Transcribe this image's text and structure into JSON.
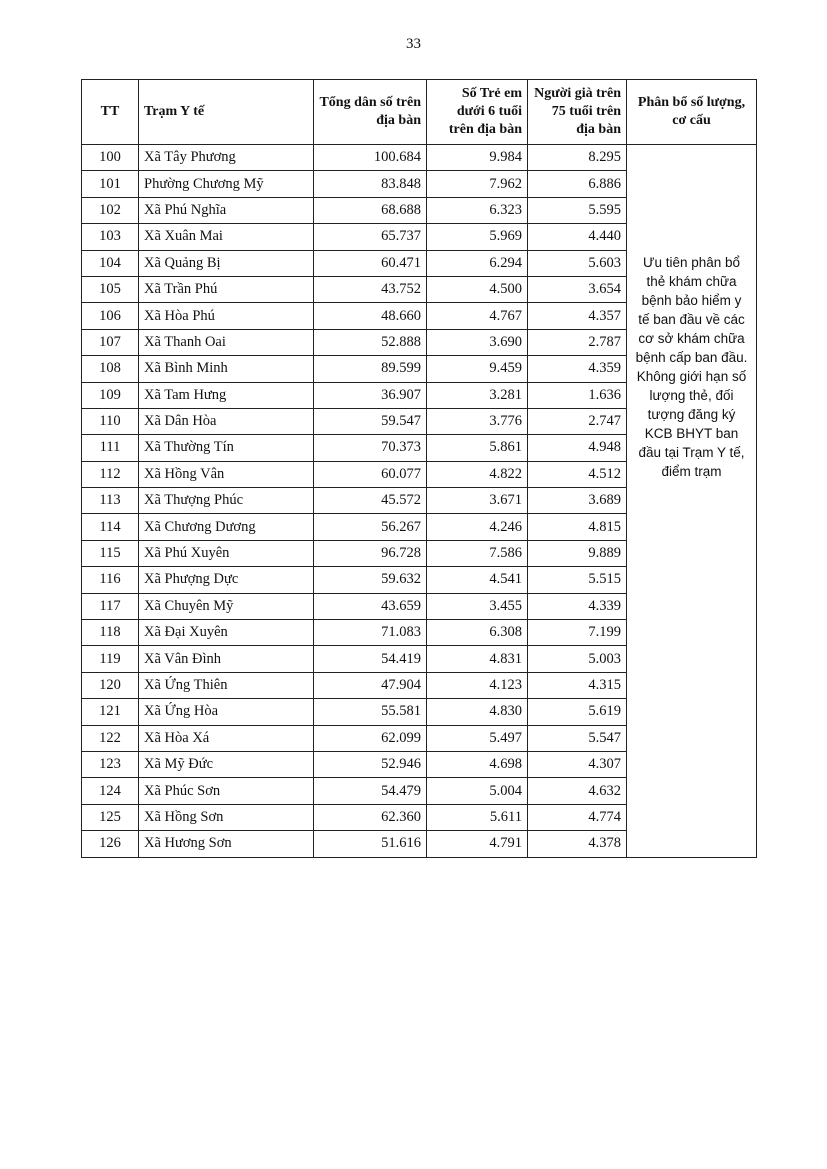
{
  "page_number": "33",
  "table": {
    "headers": [
      "TT",
      "Trạm Y tế",
      "Tổng dân số trên địa bàn",
      "Số Trẻ em dưới 6 tuổi trên địa bàn",
      "Người già trên 75 tuổi trên địa bàn",
      "Phân bổ số lượng, cơ cấu"
    ],
    "rows": [
      [
        "100",
        "Xã Tây Phương",
        "100.684",
        "9.984",
        "8.295"
      ],
      [
        "101",
        "Phường Chương Mỹ",
        "83.848",
        "7.962",
        "6.886"
      ],
      [
        "102",
        "Xã Phú Nghĩa",
        "68.688",
        "6.323",
        "5.595"
      ],
      [
        "103",
        "Xã Xuân Mai",
        "65.737",
        "5.969",
        "4.440"
      ],
      [
        "104",
        "Xã Quảng Bị",
        "60.471",
        "6.294",
        "5.603"
      ],
      [
        "105",
        "Xã Trần Phú",
        "43.752",
        "4.500",
        "3.654"
      ],
      [
        "106",
        "Xã Hòa Phú",
        "48.660",
        "4.767",
        "4.357"
      ],
      [
        "107",
        "Xã Thanh Oai",
        "52.888",
        "3.690",
        "2.787"
      ],
      [
        "108",
        "Xã Bình Minh",
        "89.599",
        "9.459",
        "4.359"
      ],
      [
        "109",
        "Xã Tam Hưng",
        "36.907",
        "3.281",
        "1.636"
      ],
      [
        "110",
        "Xã Dân Hòa",
        "59.547",
        "3.776",
        "2.747"
      ],
      [
        "111",
        "Xã Thường Tín",
        "70.373",
        "5.861",
        "4.948"
      ],
      [
        "112",
        "Xã Hồng Vân",
        "60.077",
        "4.822",
        "4.512"
      ],
      [
        "113",
        "Xã Thượng Phúc",
        "45.572",
        "3.671",
        "3.689"
      ],
      [
        "114",
        "Xã Chương Dương",
        "56.267",
        "4.246",
        "4.815"
      ],
      [
        "115",
        "Xã Phú Xuyên",
        "96.728",
        "7.586",
        "9.889"
      ],
      [
        "116",
        "Xã Phượng Dực",
        "59.632",
        "4.541",
        "5.515"
      ],
      [
        "117",
        "Xã Chuyên Mỹ",
        "43.659",
        "3.455",
        "4.339"
      ],
      [
        "118",
        "Xã Đại Xuyên",
        "71.083",
        "6.308",
        "7.199"
      ],
      [
        "119",
        "Xã Vân Đình",
        "54.419",
        "4.831",
        "5.003"
      ],
      [
        "120",
        "Xã Ứng Thiên",
        "47.904",
        "4.123",
        "4.315"
      ],
      [
        "121",
        "Xã Ứng Hòa",
        "55.581",
        "4.830",
        "5.619"
      ],
      [
        "122",
        "Xã Hòa Xá",
        "62.099",
        "5.497",
        "5.547"
      ],
      [
        "123",
        "Xã Mỹ Đức",
        "52.946",
        "4.698",
        "4.307"
      ],
      [
        "124",
        "Xã Phúc Sơn",
        "54.479",
        "5.004",
        "4.632"
      ],
      [
        "125",
        "Xã Hồng Sơn",
        "62.360",
        "5.611",
        "4.774"
      ],
      [
        "126",
        "Xã Hương Sơn",
        "51.616",
        "4.791",
        "4.378"
      ]
    ],
    "note_lines": [
      "Ưu tiên phân bổ",
      "thẻ khám chữa",
      "bệnh bảo hiểm y",
      "tế ban đầu về các",
      "cơ sở khám chữa",
      "bệnh cấp ban đầu.",
      "Không giới hạn số",
      "lượng thẻ, đối",
      "tượng đăng ký",
      "KCB BHYT ban",
      "đầu tại Trạm Y tế,",
      "điểm trạm"
    ]
  }
}
